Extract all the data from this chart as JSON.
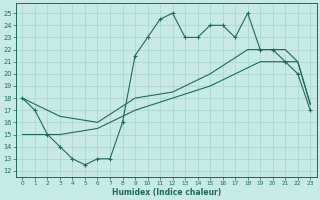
{
  "xlabel": "Humidex (Indice chaleur)",
  "xlim": [
    -0.5,
    23.5
  ],
  "ylim": [
    11.5,
    25.8
  ],
  "xticks": [
    0,
    1,
    2,
    3,
    4,
    5,
    6,
    7,
    8,
    9,
    10,
    11,
    12,
    13,
    14,
    15,
    16,
    17,
    18,
    19,
    20,
    21,
    22,
    23
  ],
  "yticks": [
    12,
    13,
    14,
    15,
    16,
    17,
    18,
    19,
    20,
    21,
    22,
    23,
    24,
    25
  ],
  "bg_color": "#c8eae4",
  "grid_color": "#a8d4cc",
  "line_color": "#1a6b5a",
  "line1_x": [
    0,
    1,
    2,
    3,
    4,
    5,
    6,
    7,
    8,
    9,
    10,
    11,
    12,
    13,
    14,
    15,
    16,
    17,
    18,
    19,
    20,
    21,
    22,
    23
  ],
  "line1_y": [
    18,
    17,
    15,
    14,
    13,
    12.5,
    13,
    13,
    16,
    21.5,
    23,
    24.5,
    25,
    23,
    23,
    24,
    24,
    23,
    25,
    22,
    22,
    21,
    20,
    17
  ],
  "line2_x": [
    0,
    3,
    6,
    9,
    12,
    15,
    18,
    19,
    20,
    21,
    22,
    23
  ],
  "line2_y": [
    15,
    15,
    15.5,
    17,
    18,
    19,
    20.5,
    21,
    21,
    21,
    21,
    17.5
  ],
  "line3_x": [
    0,
    3,
    6,
    9,
    12,
    15,
    18,
    19,
    20,
    21,
    22,
    23
  ],
  "line3_y": [
    18,
    16.5,
    16,
    18,
    18.5,
    20,
    22,
    22,
    22,
    22,
    21,
    17.5
  ]
}
